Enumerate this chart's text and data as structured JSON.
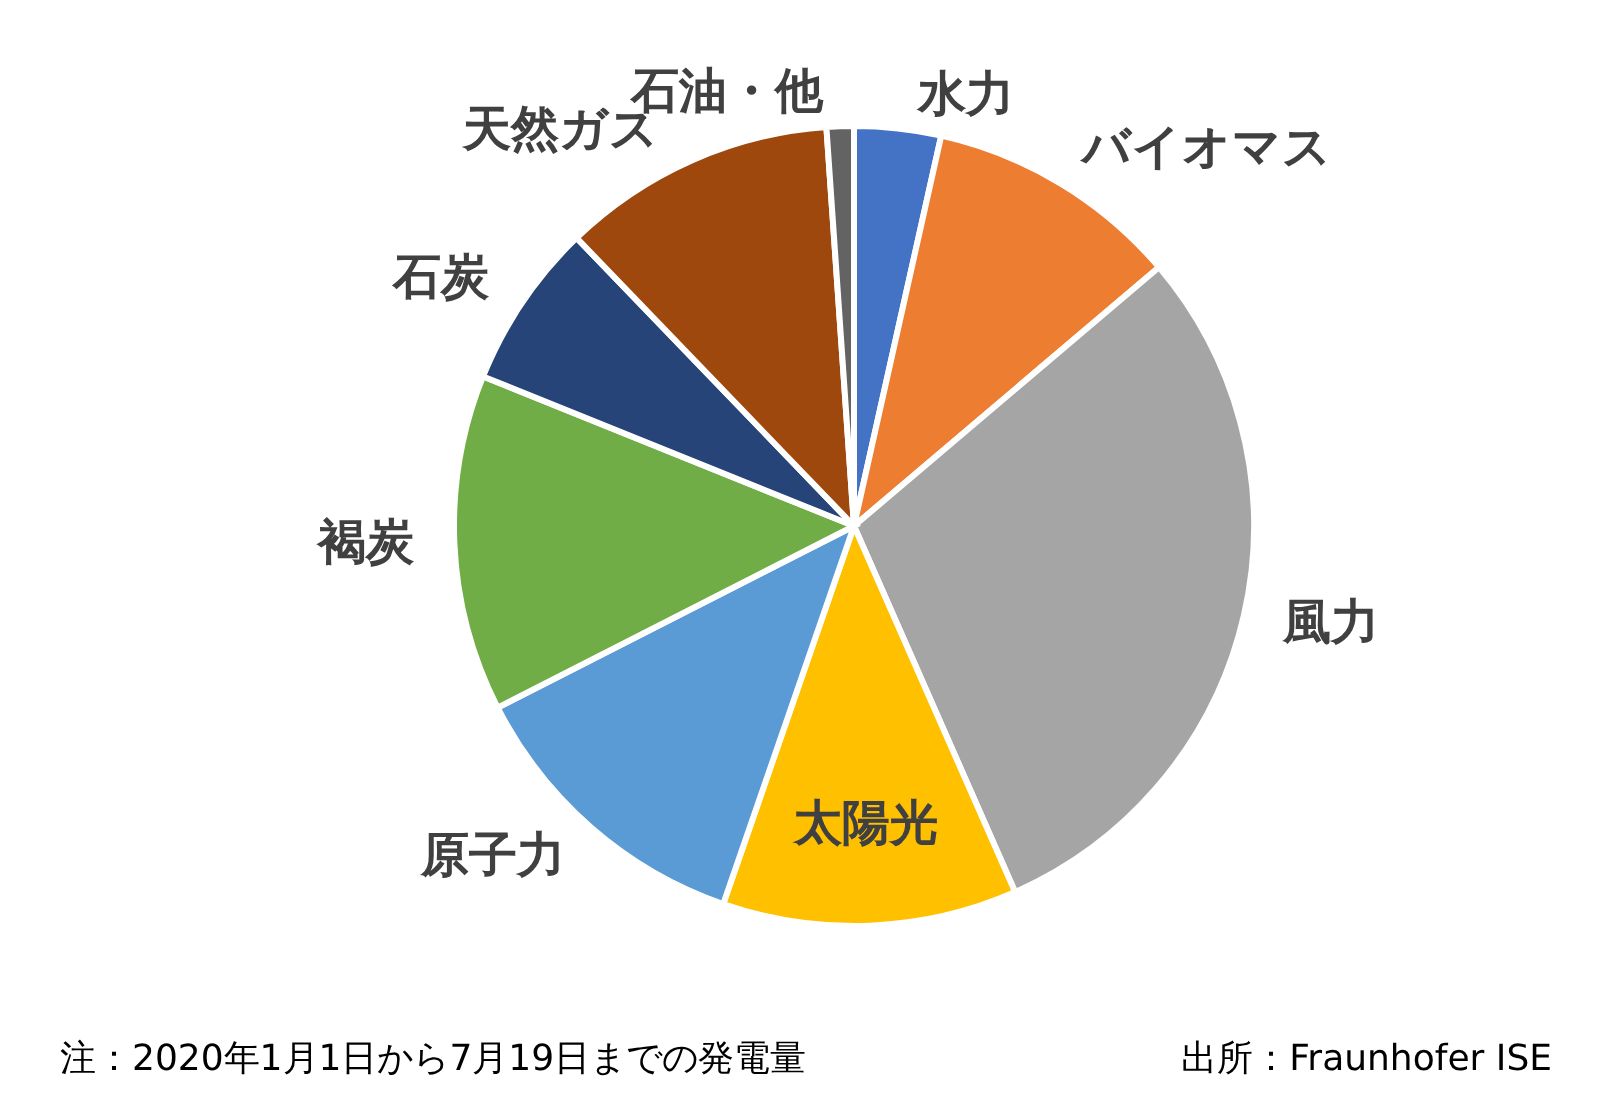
{
  "chart_data": {
    "type": "pie",
    "categories": [
      "水力",
      "バイオマス",
      "風力",
      "太陽光",
      "原子力",
      "褐炭",
      "石炭",
      "天然ガス",
      "石油・他"
    ],
    "values": [
      3.5,
      10.3,
      29.6,
      11.9,
      12.2,
      13.6,
      6.7,
      11.1,
      1.1
    ],
    "colors": [
      "#4472c4",
      "#ed7d31",
      "#a5a5a5",
      "#ffc000",
      "#5b9bd5",
      "#70ad47",
      "#264478",
      "#9e480e",
      "#636363"
    ],
    "annotations": [
      "注：2020年1月1日から7月19日までの発電量",
      "出所：Fraunhofer ISE"
    ]
  }
}
